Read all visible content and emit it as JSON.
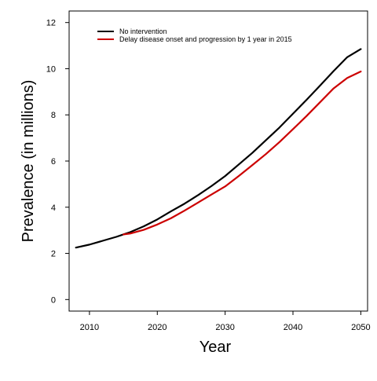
{
  "chart_data": {
    "type": "line",
    "title": "",
    "xlabel": "Year",
    "ylabel": "Prevalence (in millions)",
    "xlim": [
      2007,
      2051
    ],
    "ylim": [
      -0.5,
      12.5
    ],
    "xticks": [
      2010,
      2020,
      2030,
      2040,
      2050
    ],
    "yticks": [
      0,
      2,
      4,
      6,
      8,
      10,
      12
    ],
    "grid": false,
    "legend": {
      "position": "top-left"
    },
    "series": [
      {
        "name": "No intervention",
        "color": "#000000",
        "x": [
          2008,
          2010,
          2012,
          2014,
          2015,
          2016,
          2018,
          2020,
          2022,
          2024,
          2026,
          2028,
          2030,
          2032,
          2034,
          2036,
          2038,
          2040,
          2042,
          2044,
          2046,
          2048,
          2050
        ],
        "y": [
          2.25,
          2.38,
          2.55,
          2.72,
          2.82,
          2.92,
          3.17,
          3.47,
          3.82,
          4.15,
          4.52,
          4.92,
          5.35,
          5.85,
          6.35,
          6.9,
          7.45,
          8.05,
          8.65,
          9.27,
          9.9,
          10.5,
          10.85
        ]
      },
      {
        "name": "Delay disease onset and progression by 1 year in 2015",
        "color": "#cc0000",
        "x": [
          2015,
          2016,
          2018,
          2020,
          2022,
          2024,
          2026,
          2028,
          2030,
          2032,
          2034,
          2036,
          2038,
          2040,
          2042,
          2044,
          2046,
          2048,
          2050
        ],
        "y": [
          2.82,
          2.86,
          3.02,
          3.25,
          3.52,
          3.85,
          4.2,
          4.55,
          4.9,
          5.35,
          5.82,
          6.3,
          6.82,
          7.38,
          7.95,
          8.55,
          9.15,
          9.6,
          9.88
        ]
      }
    ]
  }
}
